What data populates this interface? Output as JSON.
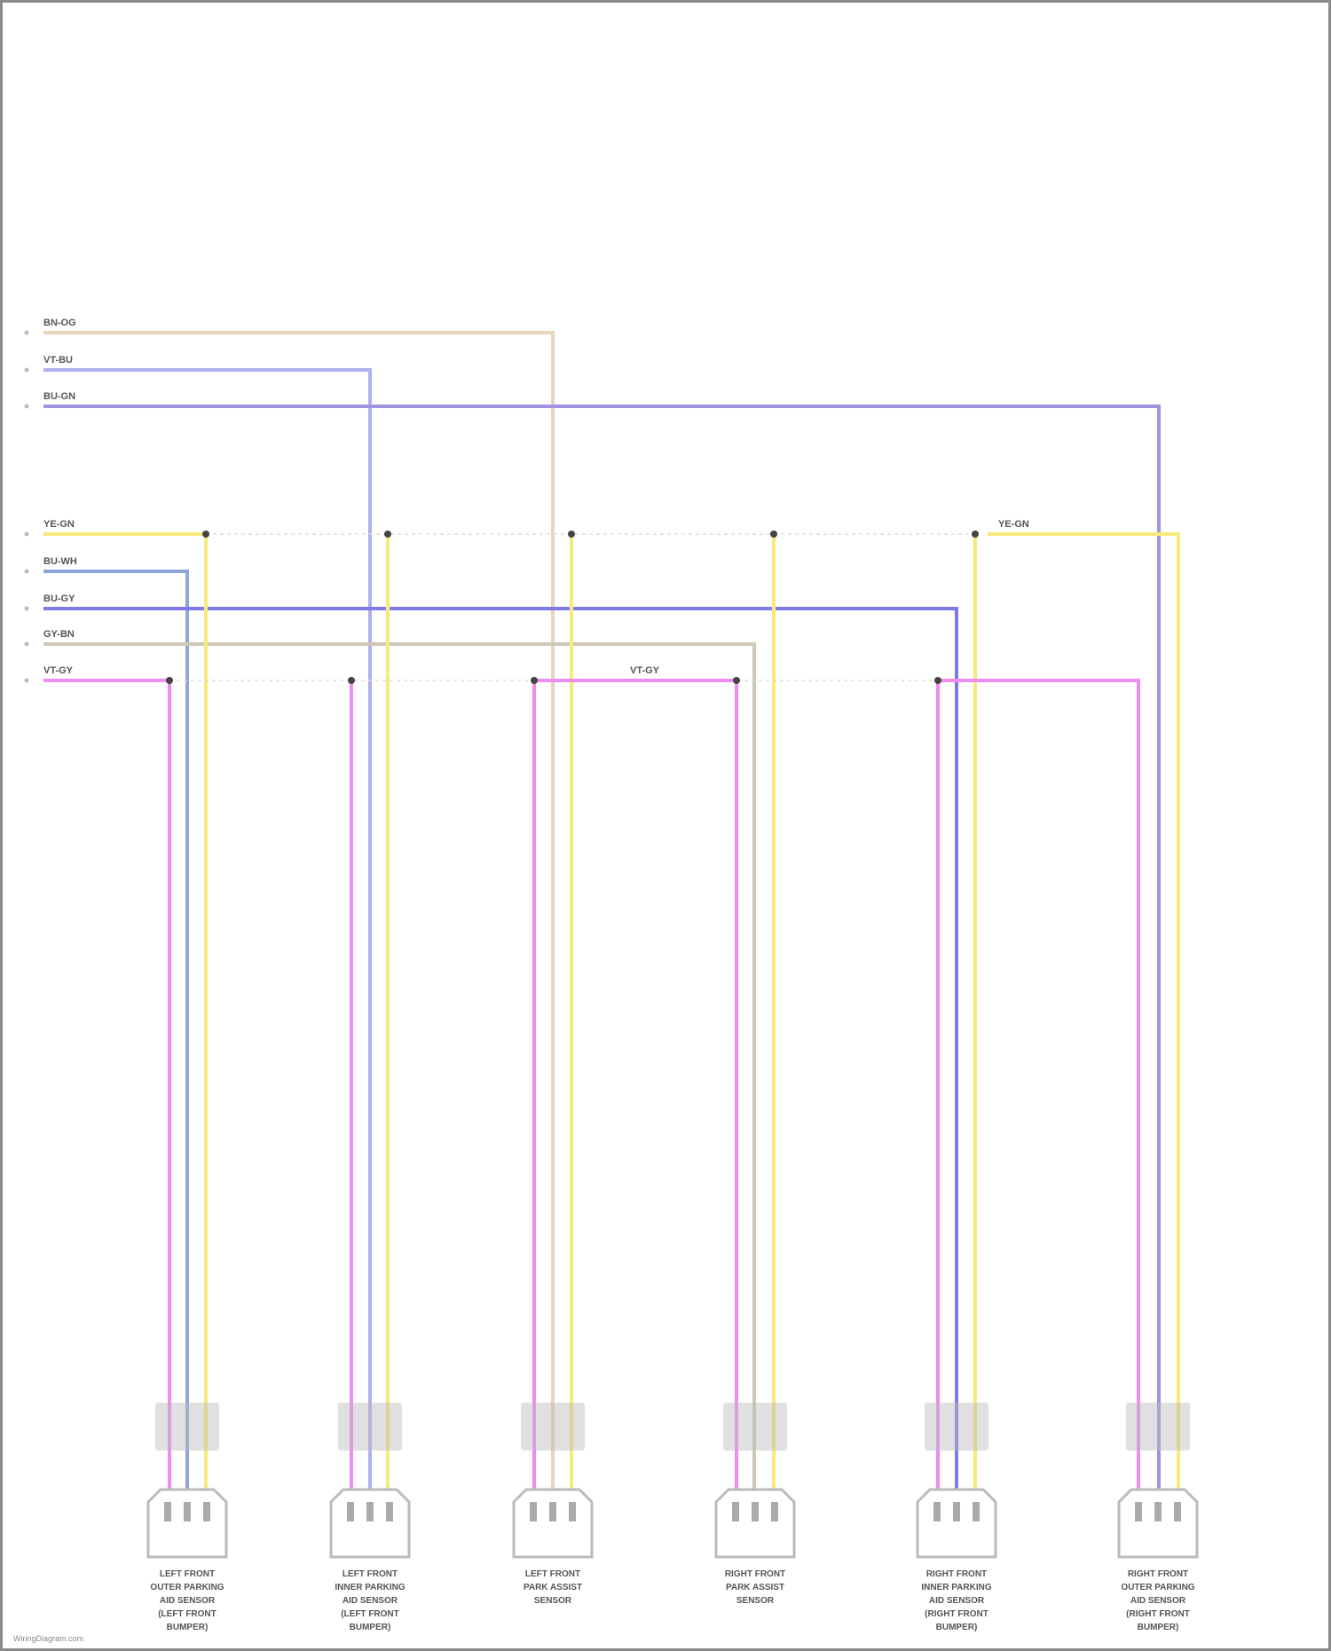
{
  "wires": [
    {
      "label": "BN-OG",
      "color": "#e6d6bc"
    },
    {
      "label": "VT-BU",
      "color": "#aeb0ee"
    },
    {
      "label": "BU-GN",
      "color": "#a293e2"
    },
    {
      "label": "YE-GN",
      "color": "#f7ea7a"
    },
    {
      "label": "BU-WH",
      "color": "#8ea6d6"
    },
    {
      "label": "BU-GY",
      "color": "#7f7aea"
    },
    {
      "label": "GY-BN",
      "color": "#cfc8b8"
    },
    {
      "label": "VT-GY",
      "color": "#ef8cef"
    }
  ],
  "mid_labels": {
    "yellow": "YE-GN",
    "pink": "VT-GY"
  },
  "connectors": [
    {
      "lines": [
        "LEFT FRONT",
        "OUTER PARKING",
        "AID SENSOR",
        "(LEFT FRONT",
        "BUMPER)"
      ]
    },
    {
      "lines": [
        "LEFT FRONT",
        "INNER PARKING",
        "AID SENSOR",
        "(LEFT FRONT",
        "BUMPER)"
      ]
    },
    {
      "lines": [
        "LEFT FRONT",
        "PARK ASSIST",
        "SENSOR"
      ]
    },
    {
      "lines": [
        "RIGHT FRONT",
        "PARK ASSIST",
        "SENSOR"
      ]
    },
    {
      "lines": [
        "RIGHT FRONT",
        "INNER PARKING",
        "AID SENSOR",
        "(RIGHT FRONT",
        "BUMPER)"
      ]
    },
    {
      "lines": [
        "RIGHT FRONT",
        "OUTER PARKING",
        "AID SENSOR",
        "(RIGHT FRONT",
        "BUMPER)"
      ]
    }
  ],
  "footer": "WiringDiagram.com"
}
